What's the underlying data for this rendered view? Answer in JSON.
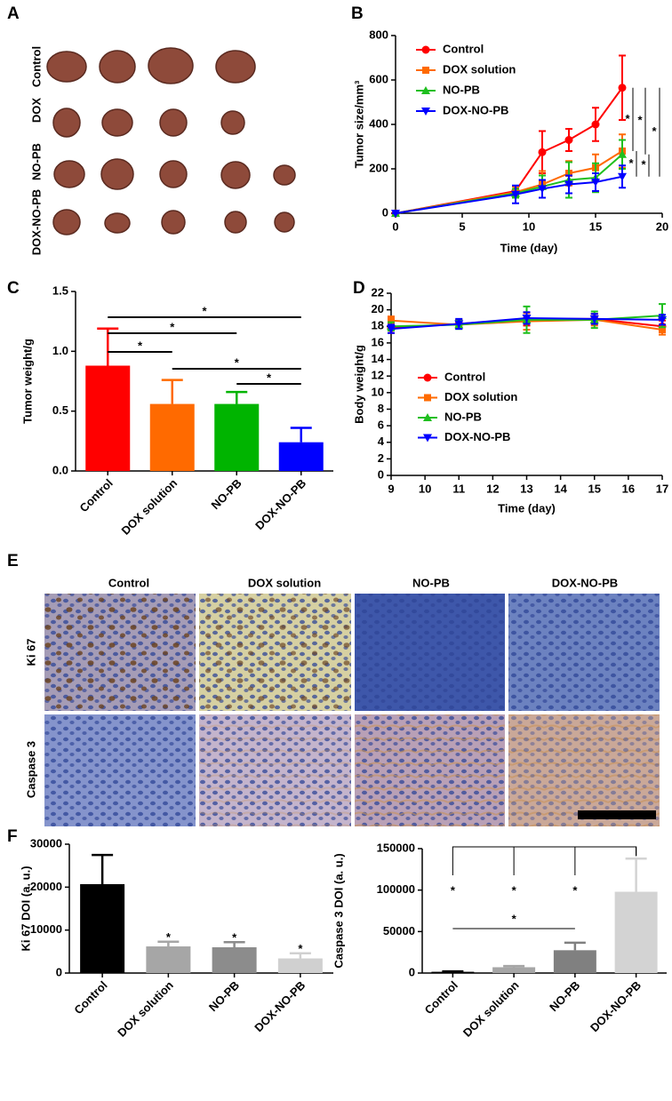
{
  "panel_labels": [
    "A",
    "B",
    "C",
    "D",
    "E",
    "F"
  ],
  "panel_a": {
    "row_labels": [
      "Control",
      "DOX",
      "NO-PB",
      "DOX-NO-PB"
    ]
  },
  "panel_e": {
    "column_labels": [
      "Control",
      "DOX solution",
      "NO-PB",
      "DOX-NO-PB"
    ],
    "row_labels": [
      "Ki 67",
      "Caspase 3"
    ]
  },
  "chart_data": [
    {
      "type": "line",
      "x_label": "Time (day)",
      "y_label": "Tumor size/mm³",
      "x": [
        0,
        9,
        11,
        13,
        15,
        17
      ],
      "xlim": [
        0,
        20
      ],
      "xticks": [
        0,
        5,
        10,
        15,
        20
      ],
      "ylim": [
        0,
        800
      ],
      "yticks": [
        0,
        200,
        400,
        600,
        800
      ],
      "legend": "upper left",
      "series": [
        {
          "name": "Control",
          "color": "#ff0000",
          "marker": "circle",
          "values": [
            0,
            100,
            275,
            330,
            400,
            565
          ],
          "errors": [
            0,
            20,
            95,
            50,
            75,
            145
          ]
        },
        {
          "name": "DOX solution",
          "color": "#ff6a00",
          "marker": "square",
          "values": [
            0,
            95,
            130,
            180,
            205,
            280
          ],
          "errors": [
            0,
            25,
            60,
            55,
            60,
            75
          ]
        },
        {
          "name": "NO-PB",
          "color": "#1fbf1f",
          "marker": "triangle-up",
          "values": [
            0,
            90,
            120,
            150,
            160,
            265
          ],
          "errors": [
            0,
            20,
            50,
            80,
            65,
            65
          ]
        },
        {
          "name": "DOX-NO-PB",
          "color": "#0000ff",
          "marker": "triangle-down",
          "values": [
            0,
            85,
            110,
            130,
            140,
            165
          ],
          "errors": [
            0,
            40,
            40,
            40,
            40,
            50
          ]
        }
      ],
      "comparisons": [
        {
          "pair": [
            0,
            1
          ],
          "label": "*"
        },
        {
          "pair": [
            0,
            2
          ],
          "label": "*"
        },
        {
          "pair": [
            0,
            3
          ],
          "label": "*"
        },
        {
          "pair": [
            1,
            3
          ],
          "label": "*"
        },
        {
          "pair": [
            2,
            3
          ],
          "label": "*"
        }
      ]
    },
    {
      "type": "bar",
      "y_label": "Tumor weight/g",
      "categories": [
        "Control",
        "DOX solution",
        "NO-PB",
        "DOX-NO-PB"
      ],
      "values": [
        0.88,
        0.56,
        0.56,
        0.24
      ],
      "errors": [
        0.31,
        0.2,
        0.1,
        0.12
      ],
      "colors": [
        "#ff0000",
        "#ff6a00",
        "#00b400",
        "#0000ff"
      ],
      "ylim": [
        0,
        1.5
      ],
      "yticks": [
        {
          "value": 0,
          "label": "0.0"
        },
        {
          "value": 0.5,
          "label": "0.5"
        },
        {
          "value": 1,
          "label": "1.0"
        },
        {
          "value": 1.5,
          "label": "1.5"
        }
      ],
      "comparisons": [
        {
          "pair": [
            0,
            3
          ],
          "label": "*"
        },
        {
          "pair": [
            0,
            2
          ],
          "label": "*"
        },
        {
          "pair": [
            0,
            1
          ],
          "label": "*"
        },
        {
          "pair": [
            1,
            3
          ],
          "label": "*"
        },
        {
          "pair": [
            2,
            3
          ],
          "label": "*"
        }
      ]
    },
    {
      "type": "line",
      "x_label": "Time (day)",
      "y_label": "Body weight/g",
      "x": [
        9,
        11,
        13,
        15,
        17
      ],
      "xlim": [
        9,
        17
      ],
      "xticks": [
        9,
        10,
        11,
        12,
        13,
        14,
        15,
        16,
        17
      ],
      "ylim": [
        0,
        22
      ],
      "yticks": [
        0,
        2,
        4,
        6,
        8,
        10,
        12,
        14,
        16,
        18,
        20,
        22
      ],
      "legend": "center right",
      "series": [
        {
          "name": "Control",
          "color": "#ff0000",
          "marker": "circle",
          "values": [
            17.8,
            18.3,
            18.9,
            18.9,
            18.0
          ],
          "errors": [
            0.6,
            0.5,
            0.8,
            0.6,
            0.7
          ]
        },
        {
          "name": "DOX solution",
          "color": "#ff6a00",
          "marker": "square",
          "values": [
            18.7,
            18.2,
            18.6,
            18.8,
            17.6
          ],
          "errors": [
            0.5,
            0.4,
            1.0,
            0.7,
            0.6
          ]
        },
        {
          "name": "NO-PB",
          "color": "#1fbf1f",
          "marker": "triangle-up",
          "values": [
            18.0,
            18.2,
            18.8,
            18.8,
            19.3
          ],
          "errors": [
            0.5,
            0.5,
            1.6,
            1.0,
            1.4
          ]
        },
        {
          "name": "DOX-NO-PB",
          "color": "#0000ff",
          "marker": "triangle-down",
          "values": [
            17.7,
            18.3,
            19.0,
            18.9,
            18.8
          ],
          "errors": [
            0.5,
            0.6,
            0.7,
            0.6,
            0.6
          ]
        }
      ]
    },
    {
      "type": "bar",
      "y_label": "Ki 67 DOI (a. u.)",
      "categories": [
        "Control",
        "DOX solution",
        "NO-PB",
        "DOX-NO-PB"
      ],
      "values": [
        20700,
        6200,
        6000,
        3400
      ],
      "errors": [
        6800,
        1100,
        1200,
        1200
      ],
      "colors": [
        "#000000",
        "#a6a6a6",
        "#8c8c8c",
        "#d0d0d0"
      ],
      "ylim": [
        0,
        30000
      ],
      "yticks": [
        0,
        10000,
        20000,
        30000
      ],
      "bar_annotations": [
        null,
        "*",
        "*",
        "*"
      ]
    },
    {
      "type": "bar",
      "y_label": "Caspase 3 DOI (a. u.)",
      "categories": [
        "Control",
        "DOX solution",
        "NO-PB",
        "DOX-NO-PB"
      ],
      "values": [
        1500,
        7000,
        27500,
        98000
      ],
      "errors": [
        500,
        1500,
        9000,
        40000
      ],
      "colors": [
        "#000000",
        "#a6a6a6",
        "#808080",
        "#d3d3d3"
      ],
      "ylim": [
        0,
        150000
      ],
      "yticks": [
        0,
        50000,
        100000,
        150000
      ],
      "comparisons": [
        {
          "pair": [
            0,
            3
          ],
          "label": "*"
        },
        {
          "pair": [
            1,
            3
          ],
          "label": "*"
        },
        {
          "pair": [
            2,
            3
          ],
          "label": "*"
        },
        {
          "pair": [
            0,
            2
          ],
          "label": "*"
        }
      ]
    }
  ]
}
